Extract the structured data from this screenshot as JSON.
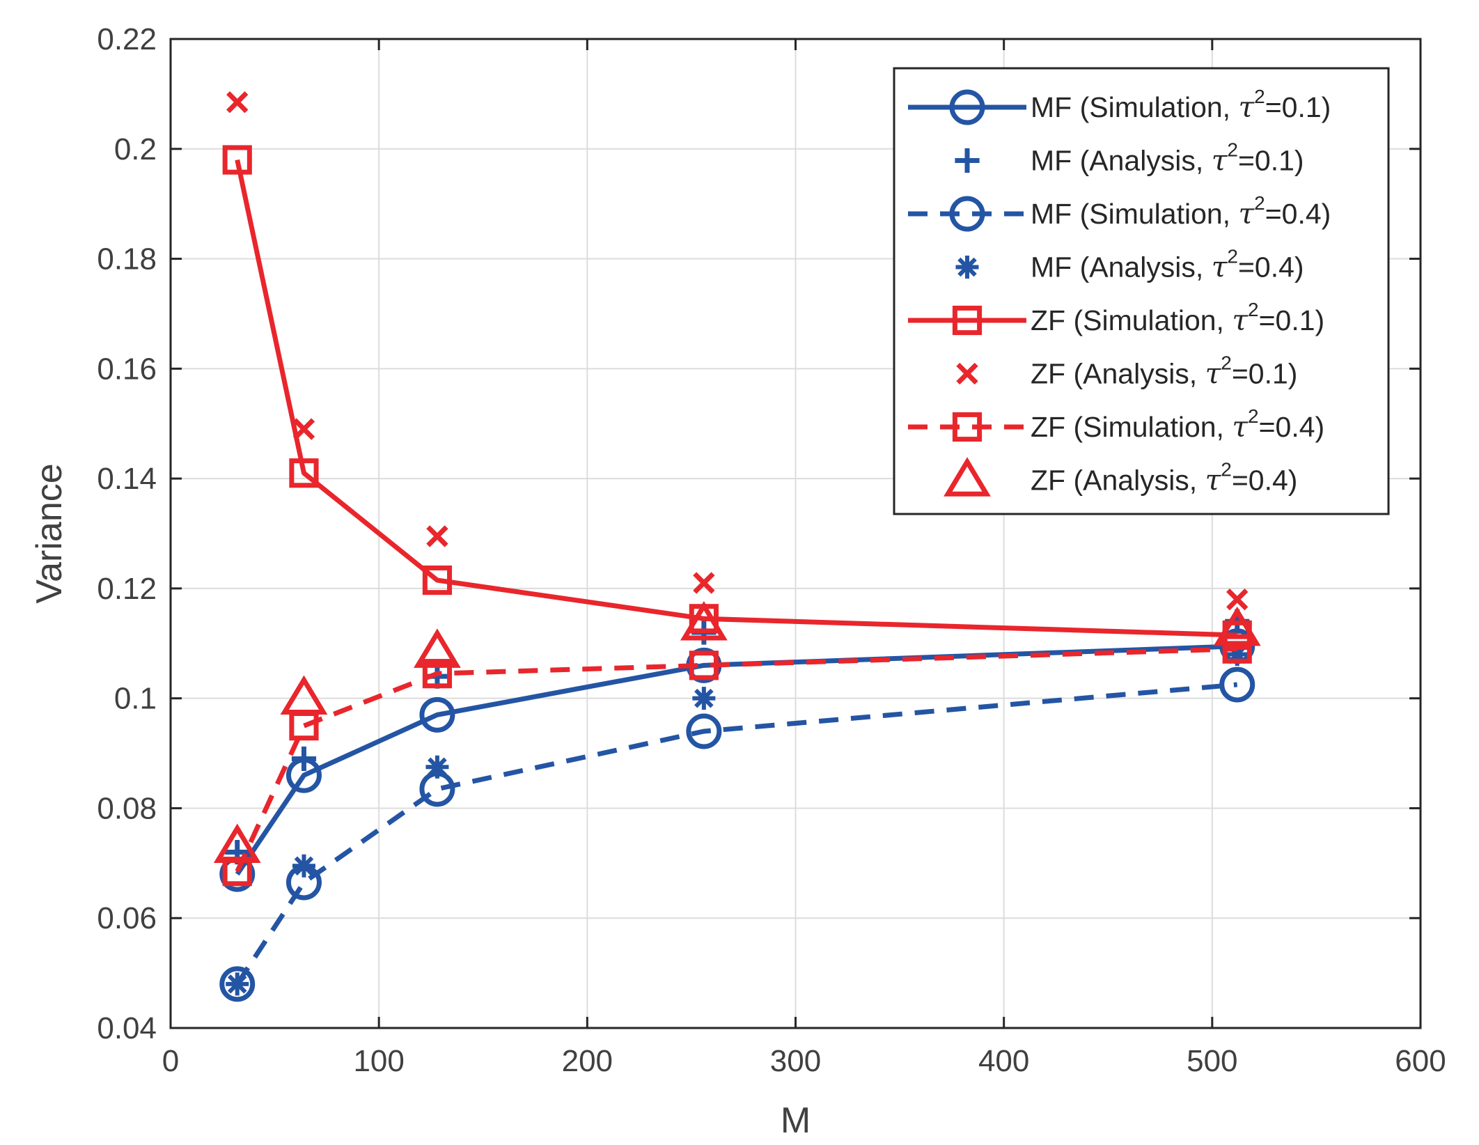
{
  "chart_data": {
    "type": "line",
    "xlabel": "M",
    "ylabel": "Variance",
    "xlim": [
      0,
      600
    ],
    "ylim": [
      0.04,
      0.22
    ],
    "xticks": [
      0,
      100,
      200,
      300,
      400,
      500,
      600
    ],
    "yticks": [
      0.04,
      0.06,
      0.08,
      0.1,
      0.12,
      0.14,
      0.16,
      0.18,
      0.2,
      0.22
    ],
    "xtick_labels": [
      "0",
      "100",
      "200",
      "300",
      "400",
      "500",
      "600"
    ],
    "ytick_labels": [
      "0.04",
      "0.06",
      "0.08",
      "0.1",
      "0.12",
      "0.14",
      "0.16",
      "0.18",
      "0.2",
      "0.22"
    ],
    "grid": true,
    "legend_position": "top-right",
    "x": [
      32,
      64,
      128,
      256,
      512
    ],
    "series": [
      {
        "name": "MF (Simulation,",
        "tau_value": "=0.1)",
        "color": "#2455a4",
        "line": "solid",
        "marker": "circle",
        "values": [
          0.068,
          0.086,
          0.097,
          0.106,
          0.1095
        ]
      },
      {
        "name": "MF (Analysis,",
        "tau_value": "=0.1)",
        "color": "#2455a4",
        "line": "none",
        "marker": "plus",
        "values": [
          0.072,
          0.089,
          0.104,
          0.112,
          0.114
        ]
      },
      {
        "name": "MF (Simulation,",
        "tau_value": "=0.4)",
        "color": "#2455a4",
        "line": "dashed",
        "marker": "circle",
        "values": [
          0.048,
          0.0665,
          0.0835,
          0.094,
          0.1025
        ]
      },
      {
        "name": "MF (Analysis,",
        "tau_value": "=0.4)",
        "color": "#2455a4",
        "line": "none",
        "marker": "asterisk",
        "values": [
          0.048,
          0.0695,
          0.0875,
          0.1,
          0.108
        ]
      },
      {
        "name": "ZF (Simulation,",
        "tau_value": "=0.1)",
        "color": "#e8262c",
        "line": "solid",
        "marker": "square",
        "values": [
          0.198,
          0.141,
          0.1215,
          0.1145,
          0.1115
        ]
      },
      {
        "name": "ZF (Analysis,",
        "tau_value": "=0.1)",
        "color": "#e8262c",
        "line": "none",
        "marker": "x",
        "values": [
          0.2085,
          0.149,
          0.1295,
          0.121,
          0.118
        ]
      },
      {
        "name": "ZF (Simulation,",
        "tau_value": "=0.4)",
        "color": "#e8262c",
        "line": "dashed",
        "marker": "square",
        "values": [
          0.0685,
          0.095,
          0.1045,
          0.106,
          0.109
        ]
      },
      {
        "name": "ZF (Analysis,",
        "tau_value": "=0.4)",
        "color": "#e8262c",
        "line": "none",
        "marker": "triangle",
        "values": [
          0.073,
          0.1,
          0.1085,
          0.1135,
          0.1125
        ]
      }
    ],
    "tau_symbol": "τ",
    "tau_exponent": "2"
  }
}
